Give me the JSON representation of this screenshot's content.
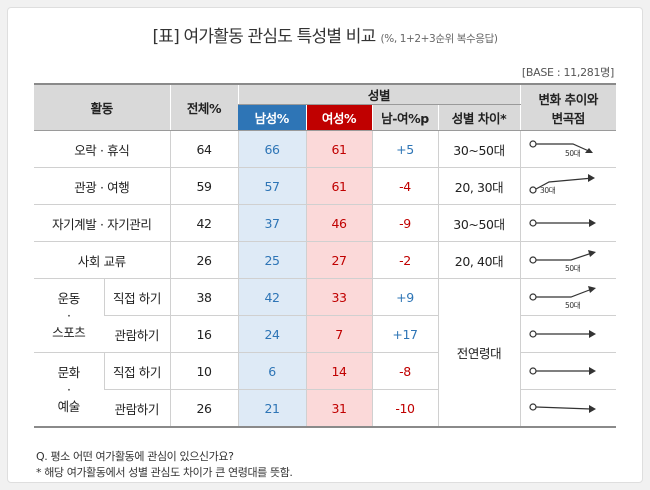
{
  "title": "[표] 여가활동 관심도 특성별 비교",
  "title_unit": "(%, 1+2+3순위 복수응답)",
  "base": "[BASE : 11,281명]",
  "headers": {
    "activity": "활동",
    "total": "전체%",
    "gender": "성별",
    "male": "남성%",
    "female": "여성%",
    "diff": "남-여%p",
    "gap": "성별 차이*",
    "trend_line1": "변화 추이와",
    "trend_line2": "변곡점"
  },
  "groups": {
    "sports_1": "운동",
    "sports_dot": "·",
    "sports_2": "스포츠",
    "culture_1": "문화",
    "culture_dot": "·",
    "culture_2": "예술"
  },
  "rows": [
    {
      "activity": "오락 · 휴식",
      "total": "64",
      "male": "66",
      "female": "61",
      "diff": "+5",
      "gap": "30~50대",
      "trend_label": "50대"
    },
    {
      "activity": "관광 · 여행",
      "total": "59",
      "male": "57",
      "female": "61",
      "diff": "-4",
      "gap": "20, 30대",
      "trend_label": "30대"
    },
    {
      "activity": "자기계발 · 자기관리",
      "total": "42",
      "male": "37",
      "female": "46",
      "diff": "-9",
      "gap": "30~50대",
      "trend_label": ""
    },
    {
      "activity": "사회 교류",
      "total": "26",
      "male": "25",
      "female": "27",
      "diff": "-2",
      "gap": "20, 40대",
      "trend_label": "50대"
    },
    {
      "activity": "직접 하기",
      "total": "38",
      "male": "42",
      "female": "33",
      "diff": "+9",
      "gap": "",
      "trend_label": "50대"
    },
    {
      "activity": "관람하기",
      "total": "16",
      "male": "24",
      "female": "7",
      "diff": "+17",
      "gap": "",
      "trend_label": ""
    },
    {
      "activity": "직접 하기",
      "total": "10",
      "male": "6",
      "female": "14",
      "diff": "-8",
      "gap": "",
      "trend_label": ""
    },
    {
      "activity": "관람하기",
      "total": "26",
      "male": "21",
      "female": "31",
      "diff": "-10",
      "gap": "",
      "trend_label": ""
    }
  ],
  "merged_gap": "전연령대",
  "footnote_q": "Q. 평소 어떤 여가활동에 관심이 있으신가요?",
  "footnote_note": "* 해당 여가활동에서 성별 관심도 차이가 큰 연령대를 뜻함.",
  "colors": {
    "male": "#2e75b6",
    "female": "#c00000",
    "male_bg": "#deeaf6",
    "female_bg": "#fbd9d9"
  },
  "icons": [
    "trend-line-icon"
  ]
}
